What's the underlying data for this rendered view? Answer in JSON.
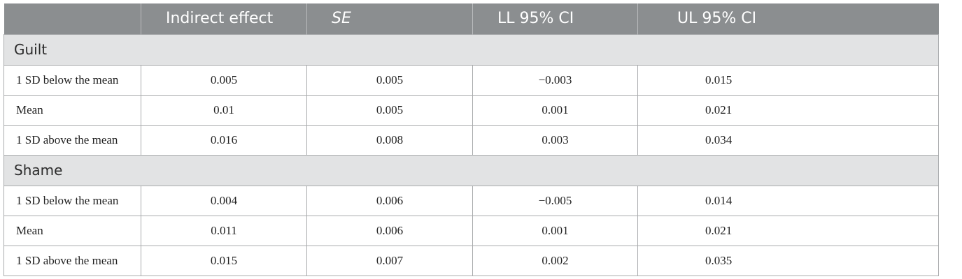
{
  "table": {
    "headers": [
      "",
      "Indirect effect",
      "SE",
      "LL 95% CI",
      "UL 95% CI"
    ],
    "sections": [
      {
        "title": "Guilt",
        "rows": [
          {
            "label": "1 SD below the mean",
            "indirect": "0.005",
            "se": "0.005",
            "ll": "−0.003",
            "ul": "0.015"
          },
          {
            "label": "Mean",
            "indirect": "0.01",
            "se": "0.005",
            "ll": "0.001",
            "ul": "0.021"
          },
          {
            "label": "1 SD above the mean",
            "indirect": "0.016",
            "se": "0.008",
            "ll": "0.003",
            "ul": "0.034"
          }
        ]
      },
      {
        "title": "Shame",
        "rows": [
          {
            "label": "1 SD below the mean",
            "indirect": "0.004",
            "se": "0.006",
            "ll": "−0.005",
            "ul": "0.014"
          },
          {
            "label": "Mean",
            "indirect": "0.011",
            "se": "0.006",
            "ll": "0.001",
            "ul": "0.021"
          },
          {
            "label": "1 SD above the mean",
            "indirect": "0.015",
            "se": "0.007",
            "ll": "0.002",
            "ul": "0.035"
          }
        ]
      }
    ]
  }
}
